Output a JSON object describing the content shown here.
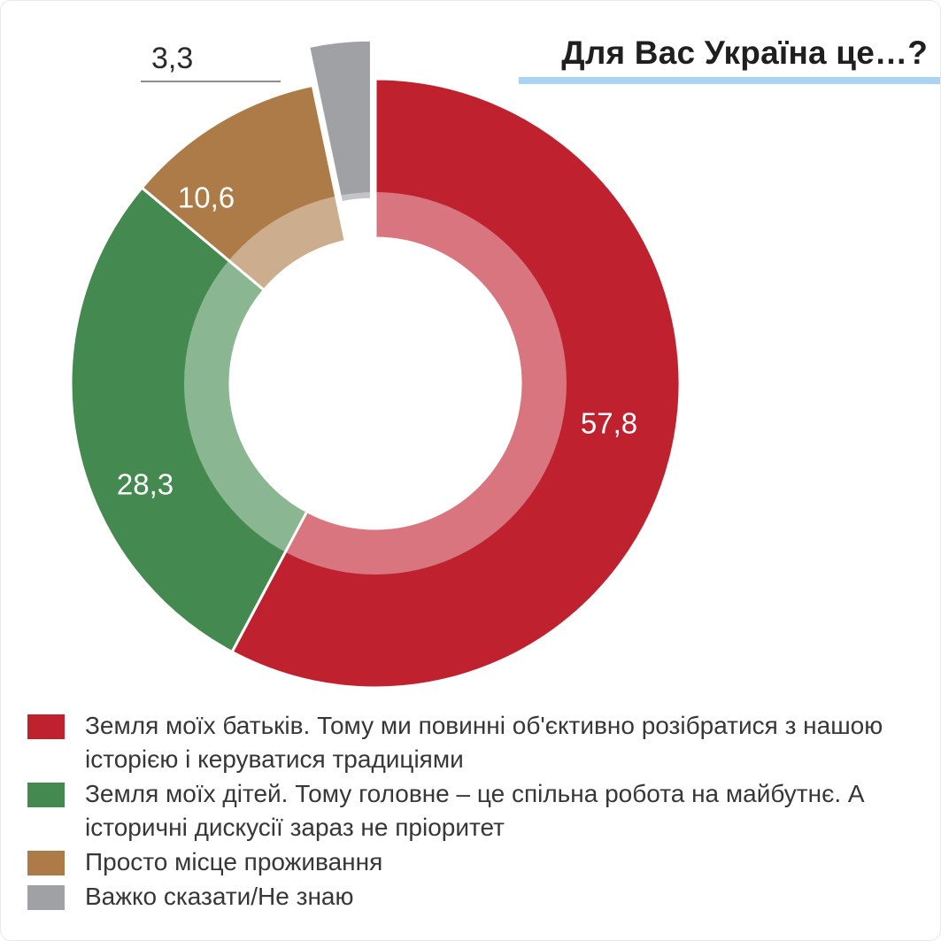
{
  "chart_data": {
    "type": "pie",
    "subtype": "donut",
    "title": "Для Вас Україна це…?",
    "unit": "%",
    "start_angle_deg": -90,
    "direction": "clockwise",
    "legend_position": "bottom",
    "accent_underline_color": "#a9d3f0",
    "slices": [
      {
        "label": "Земля моїх батьків. Тому ми повинні об'єктивно розібратися з нашою історією і керуватися традиціями",
        "value": 57.8,
        "value_display": "57,8",
        "color": "#c0212f",
        "label_inside": true,
        "exploded": false
      },
      {
        "label": "Земля моїх дітей. Тому головне – це спільна робота на майбутнє. А історичні дискусії зараз не пріоритет",
        "value": 28.3,
        "value_display": "28,3",
        "color": "#44894f",
        "label_inside": true,
        "exploded": false
      },
      {
        "label": "Просто місце проживання",
        "value": 10.6,
        "value_display": "10,6",
        "color": "#ad7b47",
        "label_inside": true,
        "exploded": false
      },
      {
        "label": "Важко сказати/Не знаю",
        "value": 3.3,
        "value_display": "3,3",
        "color": "#9fa1a4",
        "label_inside": false,
        "exploded": true
      }
    ]
  }
}
